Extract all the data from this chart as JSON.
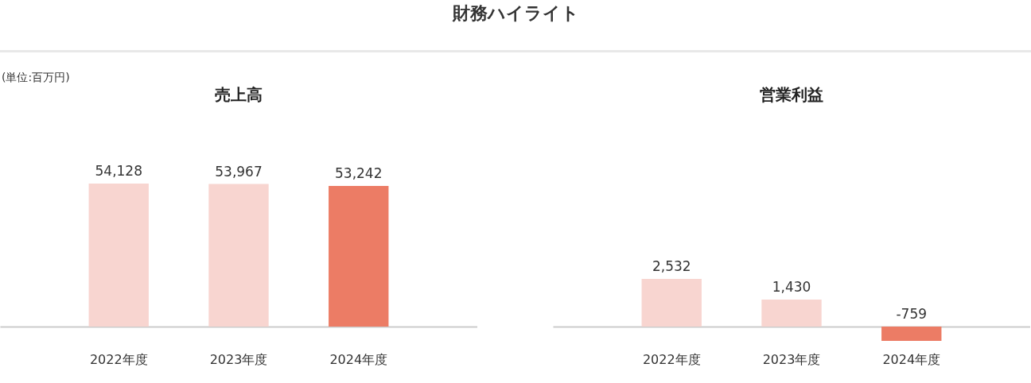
{
  "chart_data": [
    {
      "type": "bar",
      "title": "売上高",
      "annotations": [
        "財務ハイライト",
        "(単位:百万円)"
      ],
      "categories": [
        "2022年度",
        "2023年度",
        "2024年度"
      ],
      "values": [
        54128,
        53967,
        53242
      ],
      "colors": [
        "#f8d5d0",
        "#f8d5d0",
        "#ec7c65"
      ],
      "value_labels": [
        "54,128",
        "53,967",
        "53,242"
      ]
    },
    {
      "type": "bar",
      "title": "営業利益",
      "categories": [
        "2022年度",
        "2023年度",
        "2024年度"
      ],
      "values": [
        2532,
        1430,
        -759
      ],
      "colors": [
        "#f8d5d0",
        "#f8d5d0",
        "#ec7c65"
      ],
      "value_labels": [
        "2,532",
        "1,430",
        "-759"
      ]
    }
  ]
}
